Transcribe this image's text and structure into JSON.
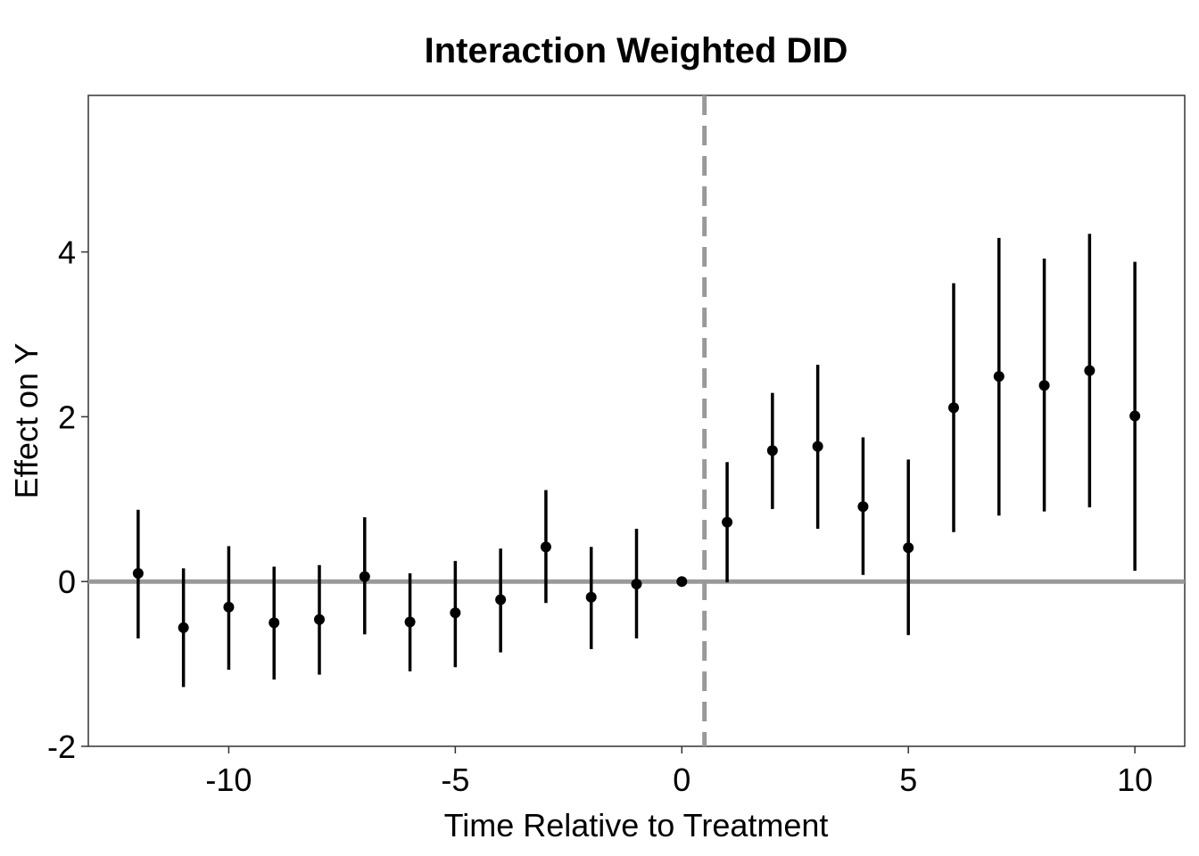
{
  "chart_data": {
    "type": "scatter",
    "title": "Interaction Weighted DID",
    "xlabel": "Time Relative to Treatment",
    "ylabel": "Effect on Y",
    "xlim": [
      -13.1,
      11.1
    ],
    "ylim": [
      -2.0,
      5.9
    ],
    "x_ticks": [
      -10,
      -5,
      0,
      5,
      10
    ],
    "y_ticks": [
      -2,
      0,
      2,
      4
    ],
    "x_tick_labels": [
      "-10",
      "-5",
      "0",
      "5",
      "10"
    ],
    "y_tick_labels": [
      "-2",
      "0",
      "2",
      "4"
    ],
    "grid": false,
    "reference_lines": {
      "horizontal_y": 0,
      "vertical_x": 0.5,
      "color": "#999999"
    },
    "point_color": "#000000",
    "series": [
      {
        "x": [
          -12,
          -11,
          -10,
          -9,
          -8,
          -7,
          -6,
          -5,
          -4,
          -3,
          -2,
          -1,
          0,
          1,
          2,
          3,
          4,
          5,
          6,
          7,
          8,
          9,
          10
        ],
        "y": [
          0.1,
          -0.56,
          -0.31,
          -0.5,
          -0.46,
          0.06,
          -0.49,
          -0.38,
          -0.22,
          0.42,
          -0.19,
          -0.03,
          0.0,
          0.72,
          1.59,
          1.64,
          0.91,
          0.41,
          2.11,
          2.49,
          2.38,
          2.56,
          2.01
        ],
        "lower": [
          -0.69,
          -1.28,
          -1.07,
          -1.19,
          -1.13,
          -0.64,
          -1.09,
          -1.04,
          -0.86,
          -0.26,
          -0.82,
          -0.69,
          0.0,
          -0.01,
          0.88,
          0.64,
          0.08,
          -0.65,
          0.6,
          0.8,
          0.85,
          0.9,
          0.13
        ],
        "upper": [
          0.87,
          0.16,
          0.43,
          0.18,
          0.2,
          0.78,
          0.1,
          0.25,
          0.4,
          1.11,
          0.42,
          0.64,
          0.0,
          1.45,
          2.29,
          2.63,
          1.75,
          1.48,
          3.62,
          4.17,
          3.92,
          4.22,
          3.88
        ]
      }
    ]
  }
}
